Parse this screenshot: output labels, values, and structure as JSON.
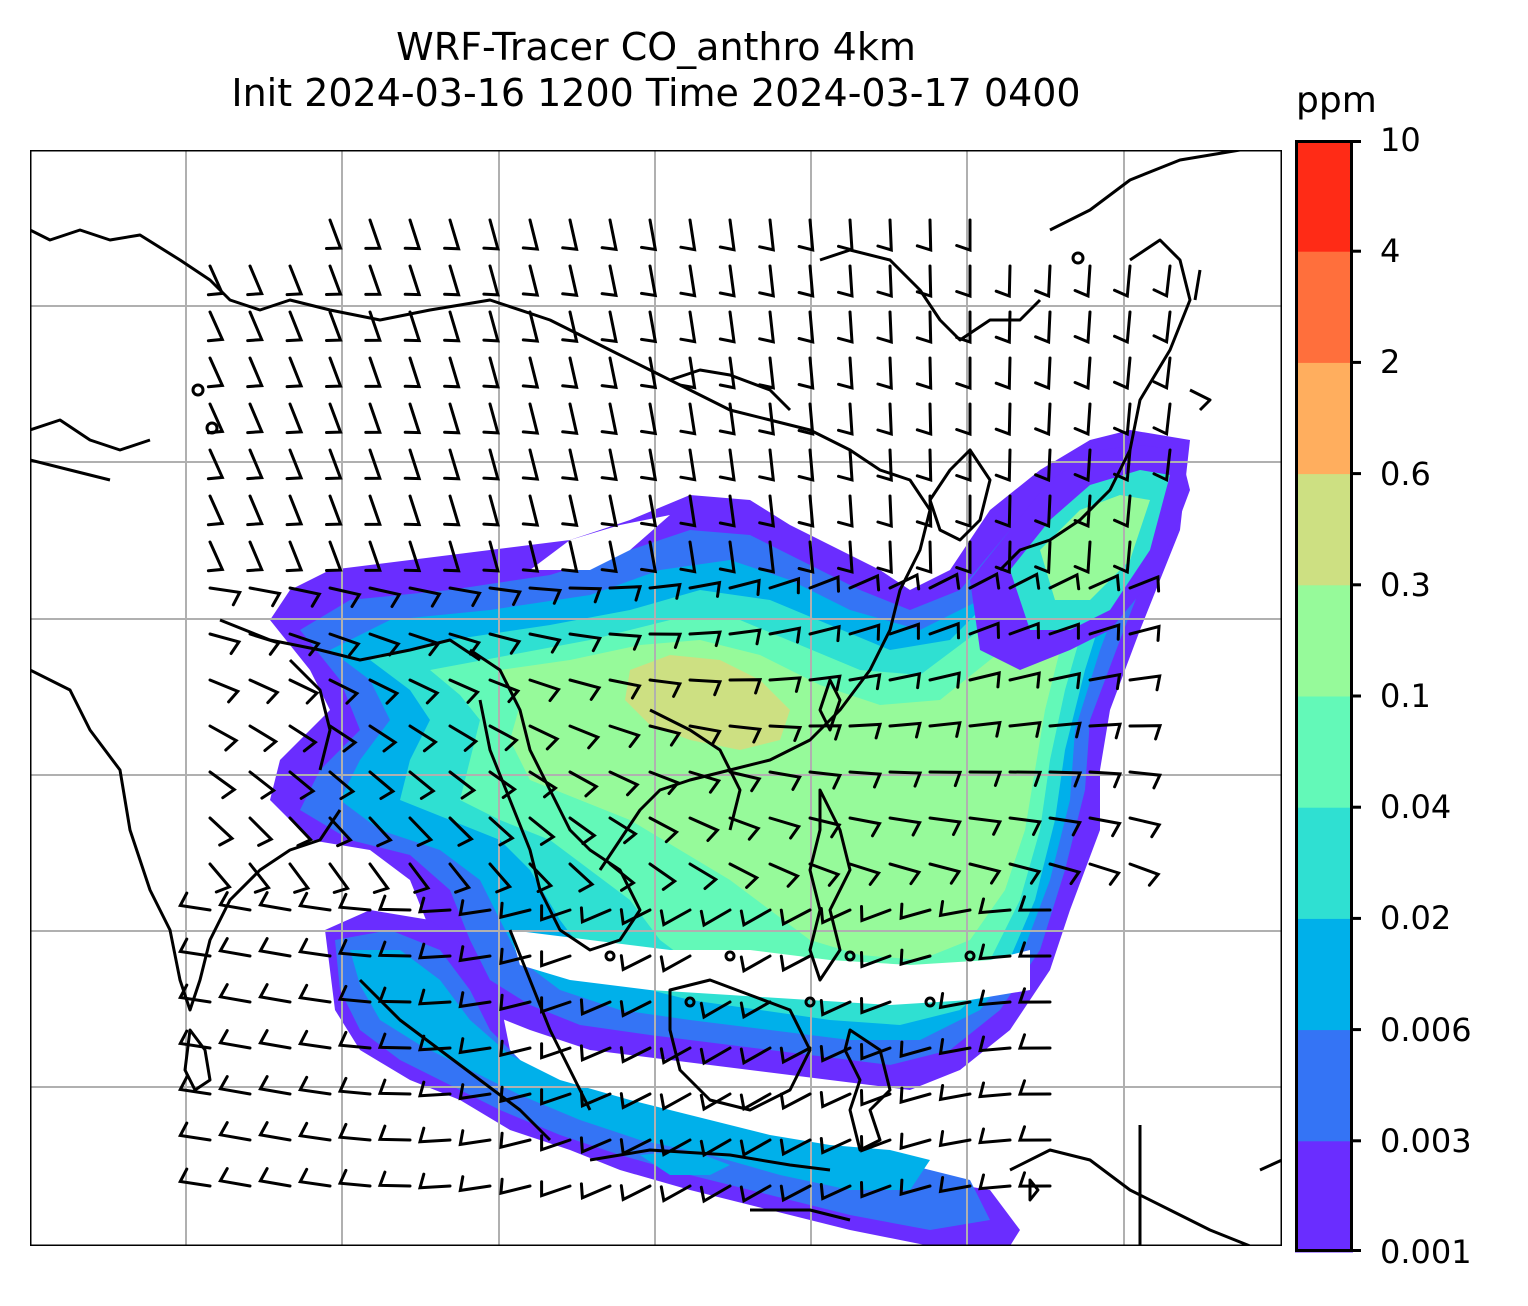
{
  "title": {
    "line1": "WRF-Tracer CO_anthro 4km",
    "line2": "Init 2024-03-16 1200 Time 2024-03-17 0400"
  },
  "colorbar": {
    "unit": "ppm",
    "levels": [
      "0.001",
      "0.003",
      "0.006",
      "0.02",
      "0.04",
      "0.1",
      "0.3",
      "0.6",
      "2",
      "4",
      "10"
    ],
    "colors": [
      "#6a2dff",
      "#3474f5",
      "#00b0ea",
      "#2fe0d2",
      "#63f9b8",
      "#96fa9a",
      "#cde082",
      "#ffae5e",
      "#ff6f3c",
      "#ff2b16"
    ]
  },
  "map": {
    "gridlines": true,
    "wind_barbs": true
  }
}
